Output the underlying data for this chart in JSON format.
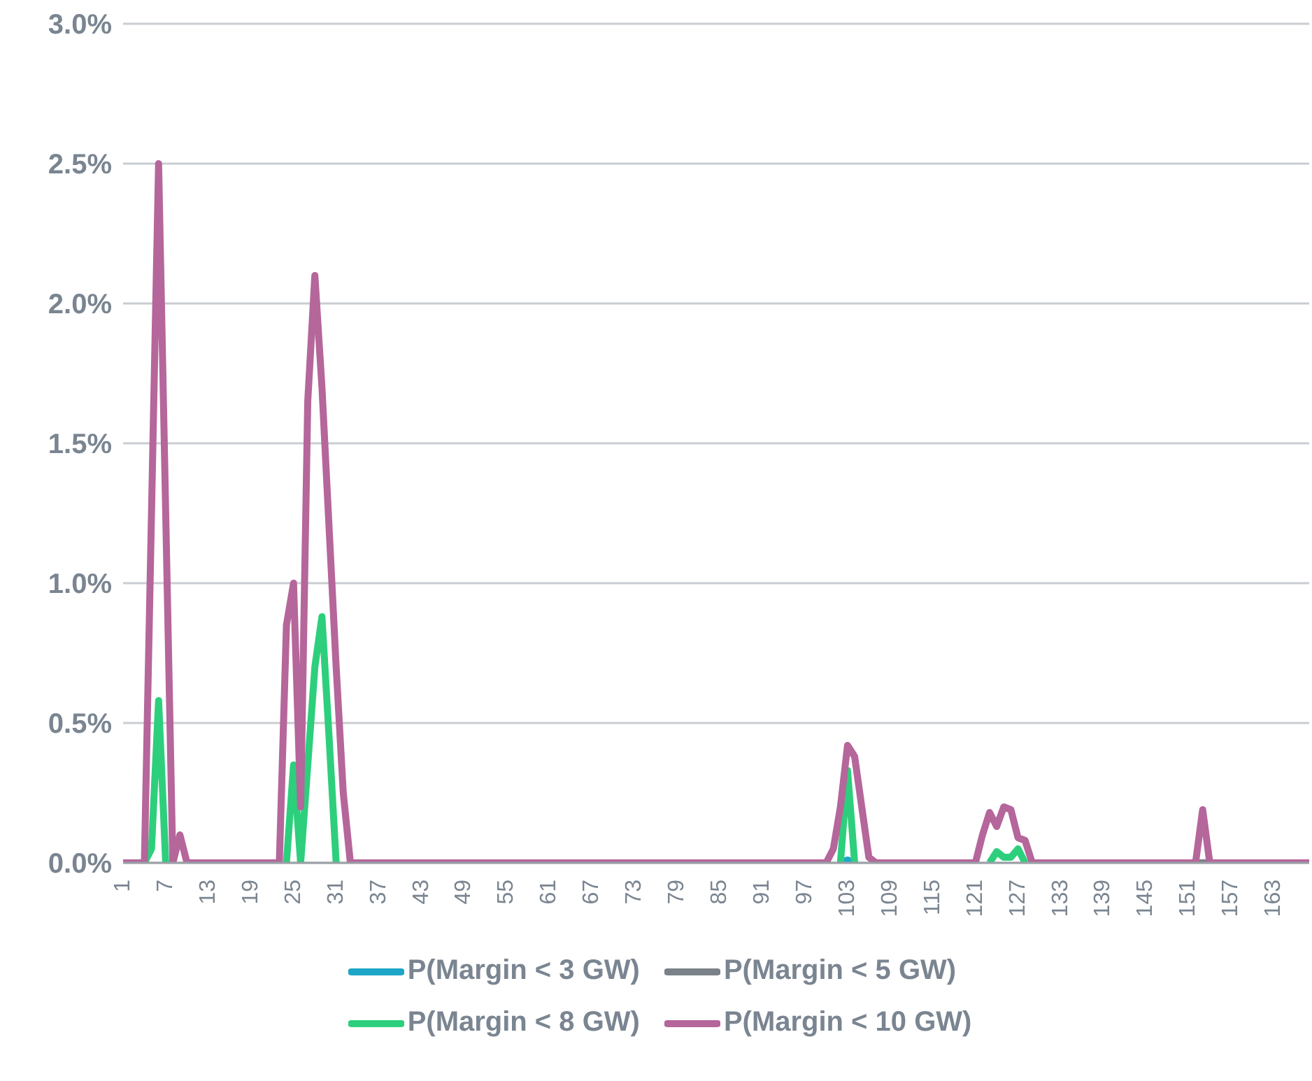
{
  "chart_data": {
    "type": "line",
    "categories": [
      "1",
      null,
      null,
      null,
      null,
      null,
      "7",
      null,
      null,
      null,
      null,
      null,
      "13",
      null,
      null,
      null,
      null,
      null,
      "19",
      null,
      null,
      null,
      null,
      null,
      "25",
      null,
      null,
      null,
      null,
      null,
      "31",
      null,
      null,
      null,
      null,
      null,
      "37",
      null,
      null,
      null,
      null,
      null,
      "43",
      null,
      null,
      null,
      null,
      null,
      "49",
      null,
      null,
      null,
      null,
      null,
      "55",
      null,
      null,
      null,
      null,
      null,
      "61",
      null,
      null,
      null,
      null,
      null,
      "67",
      null,
      null,
      null,
      null,
      null,
      "73",
      null,
      null,
      null,
      null,
      null,
      "79",
      null,
      null,
      null,
      null,
      null,
      "85",
      null,
      null,
      null,
      null,
      null,
      "91",
      null,
      null,
      null,
      null,
      null,
      "97",
      null,
      null,
      null,
      null,
      null,
      "103",
      null,
      null,
      null,
      null,
      null,
      "109",
      null,
      null,
      null,
      null,
      null,
      "115",
      null,
      null,
      null,
      null,
      null,
      "121",
      null,
      null,
      null,
      null,
      null,
      "127",
      null,
      null,
      null,
      null,
      null,
      "133",
      null,
      null,
      null,
      null,
      null,
      "139",
      null,
      null,
      null,
      null,
      null,
      "145",
      null,
      null,
      null,
      null,
      null,
      "151",
      null,
      null,
      null,
      null,
      null,
      "157",
      null,
      null,
      null,
      null,
      null,
      "163",
      null,
      null,
      null,
      null,
      null
    ],
    "series": [
      {
        "name": "P(Margin < 3 GW)",
        "color": "#1ea6c6",
        "values": [
          null,
          null,
          null,
          null,
          null,
          null,
          null,
          null,
          null,
          null,
          null,
          null,
          null,
          null,
          null,
          null,
          null,
          null,
          null,
          null,
          null,
          null,
          null,
          null,
          null,
          null,
          null,
          null,
          null,
          null,
          null,
          null,
          null,
          null,
          null,
          null,
          null,
          null,
          null,
          null,
          null,
          null,
          null,
          null,
          null,
          null,
          null,
          null,
          null,
          null,
          null,
          null,
          null,
          null,
          null,
          null,
          null,
          null,
          null,
          null,
          null,
          null,
          null,
          null,
          null,
          null,
          null,
          null,
          null,
          null,
          null,
          null,
          null,
          null,
          null,
          null,
          null,
          null,
          null,
          null,
          null,
          null,
          null,
          null,
          null,
          null,
          null,
          null,
          null,
          null,
          null,
          null,
          null,
          null,
          null,
          null,
          null,
          null,
          null,
          null,
          null,
          0,
          0.01,
          0,
          null,
          null,
          null,
          null,
          null,
          null,
          null,
          null,
          null,
          null,
          null,
          null,
          null,
          null,
          null,
          null,
          null,
          null,
          null,
          null,
          null,
          null,
          null,
          null,
          null,
          null,
          null,
          null,
          null,
          null,
          null,
          null,
          null,
          null,
          null,
          null,
          null,
          null,
          null,
          null,
          null,
          null,
          null,
          null,
          null,
          null,
          null,
          null,
          null,
          null,
          null,
          null,
          null,
          null,
          null,
          null,
          null,
          null,
          null,
          null,
          null,
          null,
          null,
          null
        ]
      },
      {
        "name": "P(Margin < 5 GW)",
        "color": "#7b8188",
        "values": [
          null,
          null,
          null,
          null,
          null,
          null,
          null,
          null,
          null,
          null,
          null,
          null,
          null,
          null,
          null,
          null,
          null,
          null,
          null,
          null,
          null,
          null,
          null,
          null,
          null,
          null,
          null,
          null,
          null,
          null,
          null,
          null,
          null,
          null,
          null,
          null,
          null,
          null,
          null,
          null,
          null,
          null,
          null,
          null,
          null,
          null,
          null,
          null,
          null,
          null,
          null,
          null,
          null,
          null,
          null,
          null,
          null,
          null,
          null,
          null,
          null,
          null,
          null,
          null,
          null,
          null,
          null,
          null,
          null,
          null,
          null,
          null,
          null,
          null,
          null,
          null,
          null,
          null,
          null,
          null,
          null,
          null,
          null,
          null,
          null,
          null,
          null,
          null,
          null,
          null,
          null,
          null,
          null,
          null,
          null,
          null,
          null,
          null,
          null,
          null,
          null,
          null,
          null,
          null,
          null,
          null,
          null,
          null,
          null,
          null,
          null,
          null,
          null,
          null,
          null,
          null,
          null,
          null,
          null,
          null,
          null,
          null,
          null,
          null,
          null,
          null,
          null,
          null,
          null,
          null,
          null,
          null,
          null,
          null,
          null,
          null,
          null,
          null,
          null,
          null,
          null,
          null,
          null,
          null,
          null,
          null,
          null,
          null,
          null,
          null,
          null,
          0,
          0,
          0,
          null,
          null,
          null,
          null,
          null,
          null,
          null,
          null,
          null,
          null,
          null,
          null,
          null,
          null
        ]
      },
      {
        "name": "P(Margin < 8 GW)",
        "color": "#2dcf7c",
        "values": [
          null,
          null,
          null,
          0,
          0.05,
          0.58,
          0,
          null,
          null,
          null,
          null,
          null,
          null,
          null,
          null,
          null,
          null,
          null,
          null,
          null,
          null,
          null,
          null,
          0,
          0.35,
          0,
          0.35,
          0.7,
          0.88,
          0.45,
          0,
          null,
          null,
          null,
          null,
          null,
          null,
          null,
          null,
          null,
          null,
          null,
          null,
          null,
          null,
          null,
          null,
          null,
          null,
          null,
          null,
          null,
          null,
          null,
          null,
          null,
          null,
          null,
          null,
          null,
          null,
          null,
          null,
          null,
          null,
          null,
          null,
          null,
          null,
          null,
          null,
          null,
          null,
          null,
          null,
          null,
          null,
          null,
          null,
          null,
          null,
          null,
          null,
          null,
          null,
          null,
          null,
          null,
          null,
          null,
          null,
          null,
          null,
          null,
          null,
          null,
          null,
          null,
          null,
          null,
          null,
          0,
          0.33,
          0,
          null,
          null,
          null,
          null,
          null,
          null,
          null,
          null,
          null,
          null,
          null,
          null,
          null,
          null,
          null,
          null,
          null,
          null,
          0,
          0.04,
          0.02,
          0.02,
          0.05,
          0,
          null,
          null,
          null,
          null,
          null,
          null,
          null,
          null,
          null,
          null,
          null,
          null,
          null,
          null,
          null,
          null,
          null,
          null,
          null,
          null,
          null,
          null,
          null,
          null,
          null,
          null,
          null,
          null,
          null,
          null,
          null,
          null,
          null,
          null,
          null,
          null,
          null,
          null,
          null,
          null
        ]
      },
      {
        "name": "P(Margin < 10 GW)",
        "color": "#b5669a",
        "values": [
          0,
          0,
          0,
          0,
          1.25,
          2.5,
          1.25,
          0,
          0.1,
          0,
          0,
          0,
          0,
          0,
          0,
          0,
          0,
          0,
          0,
          0,
          0,
          0,
          0,
          0.85,
          1.0,
          0.2,
          1.65,
          2.1,
          1.7,
          1.2,
          0.7,
          0.25,
          0,
          0,
          0,
          0,
          0,
          0,
          0,
          0,
          0,
          0,
          0,
          0,
          0,
          0,
          0,
          0,
          0,
          0,
          0,
          0,
          0,
          0,
          0,
          0,
          0,
          0,
          0,
          0,
          0,
          0,
          0,
          0,
          0,
          0,
          0,
          0,
          0,
          0,
          0,
          0,
          0,
          0,
          0,
          0,
          0,
          0,
          0,
          0,
          0,
          0,
          0,
          0,
          0,
          0,
          0,
          0,
          0,
          0,
          0,
          0,
          0,
          0,
          0,
          0,
          0,
          0,
          0,
          0,
          0.05,
          0.2,
          0.42,
          0.38,
          0.2,
          0.02,
          0,
          0,
          0,
          0,
          0,
          0,
          0,
          0,
          0,
          0,
          0,
          0,
          0,
          0,
          0,
          0.1,
          0.18,
          0.13,
          0.2,
          0.19,
          0.09,
          0.08,
          0,
          0,
          0,
          0,
          0,
          0,
          0,
          0,
          0,
          0,
          0,
          0,
          0,
          0,
          0,
          0,
          0,
          0,
          0,
          0,
          0,
          0,
          0,
          0,
          0.19,
          0,
          0,
          0,
          0,
          0,
          0,
          0,
          0,
          0,
          0,
          0,
          0,
          0,
          0,
          0
        ]
      }
    ],
    "ylim": [
      0,
      3
    ],
    "yticks": [
      {
        "value": 0,
        "label": "0.0%"
      },
      {
        "value": 0.5,
        "label": "0.5%"
      },
      {
        "value": 1,
        "label": "1.0%"
      },
      {
        "value": 1.5,
        "label": "1.5%"
      },
      {
        "value": 2,
        "label": "2.0%"
      },
      {
        "value": 2.5,
        "label": "2.5%"
      },
      {
        "value": 3,
        "label": "3.0%"
      }
    ],
    "grid": "y",
    "legend": "bottom",
    "marker": "none",
    "line_style": "solid"
  }
}
